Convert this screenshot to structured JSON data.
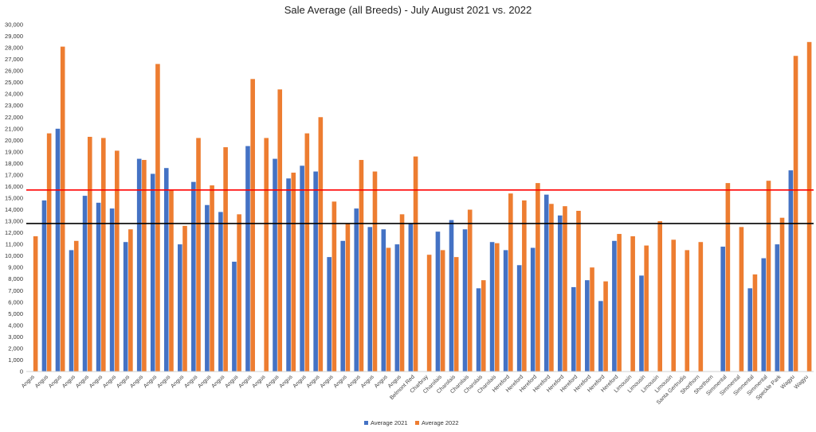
{
  "chart_data": {
    "type": "bar",
    "title": "Sale Average (all Breeds) - July August 2021 vs. 2022",
    "ylim": [
      0,
      30000
    ],
    "yticks": [
      "0",
      "1,000",
      "2,000",
      "3,000",
      "4,000",
      "5,000",
      "6,000",
      "7,000",
      "8,000",
      "9,000",
      "10,000",
      "11,000",
      "12,000",
      "13,000",
      "14,000",
      "15,000",
      "16,000",
      "17,000",
      "18,000",
      "19,000",
      "20,000",
      "21,000",
      "22,000",
      "23,000",
      "24,000",
      "25,000",
      "26,000",
      "27,000",
      "28,000",
      "29,000",
      "30,000"
    ],
    "legend_position": "bottom",
    "categories": [
      "Angus",
      "Angus",
      "Angus",
      "Angus",
      "Angus",
      "Angus",
      "Angus",
      "Angus",
      "Angus",
      "Angus",
      "Angus",
      "Angus",
      "Angus",
      "Angus",
      "Angus",
      "Angus",
      "Angus",
      "Angus",
      "Angus",
      "Angus",
      "Angus",
      "Angus",
      "Angus",
      "Angus",
      "Angus",
      "Angus",
      "Angus",
      "Angus",
      "Belmont Red",
      "Charbray",
      "Charolais",
      "Charolais",
      "Charolais",
      "Charolais",
      "Charolais",
      "Hereford",
      "Hereford",
      "Hereford",
      "Hereford",
      "Hereford",
      "Hereford",
      "Hereford",
      "Hereford",
      "Hereford",
      "Limousin",
      "Limousin",
      "Limousin",
      "Limousin",
      "Santa Gertrudis",
      "Shorthorn",
      "Shorthorn",
      "Simmental",
      "Simmental",
      "Simmental",
      "Simmental",
      "Speckle Park",
      "Wagyu",
      "Wagyu"
    ],
    "series": [
      {
        "name": "Average 2021",
        "color": "#4472C4",
        "values": [
          null,
          14800,
          21000,
          10500,
          15200,
          14600,
          14100,
          11200,
          18400,
          17100,
          17600,
          11000,
          16400,
          14400,
          13800,
          9500,
          19500,
          null,
          18400,
          16700,
          17800,
          17300,
          9900,
          11300,
          14100,
          12500,
          12300,
          11000,
          12800,
          null,
          12100,
          13100,
          12300,
          7200,
          11200,
          10500,
          9200,
          10700,
          15300,
          13500,
          7300,
          7900,
          6100,
          11300,
          null,
          8300,
          null,
          null,
          null,
          null,
          null,
          10800,
          null,
          7200,
          9800,
          11000,
          17400,
          null
        ]
      },
      {
        "name": "Average 2022",
        "color": "#ED7D31",
        "values": [
          11700,
          20600,
          28100,
          11300,
          20300,
          20200,
          19100,
          12300,
          18300,
          26600,
          15700,
          12600,
          20200,
          16100,
          19400,
          13600,
          25300,
          20200,
          24400,
          17200,
          20600,
          22000,
          14700,
          12800,
          18300,
          17300,
          10700,
          13600,
          18600,
          10100,
          10500,
          9900,
          14000,
          7900,
          11100,
          15400,
          14800,
          16300,
          14500,
          14300,
          13900,
          9000,
          7800,
          11900,
          11700,
          10900,
          13000,
          11400,
          10500,
          11200,
          null,
          16300,
          12500,
          8400,
          16500,
          13300,
          27300,
          28500
        ]
      }
    ],
    "reference_lines": [
      {
        "value": 15700,
        "color": "#FF0000"
      },
      {
        "value": 12800,
        "color": "#000000"
      }
    ]
  }
}
